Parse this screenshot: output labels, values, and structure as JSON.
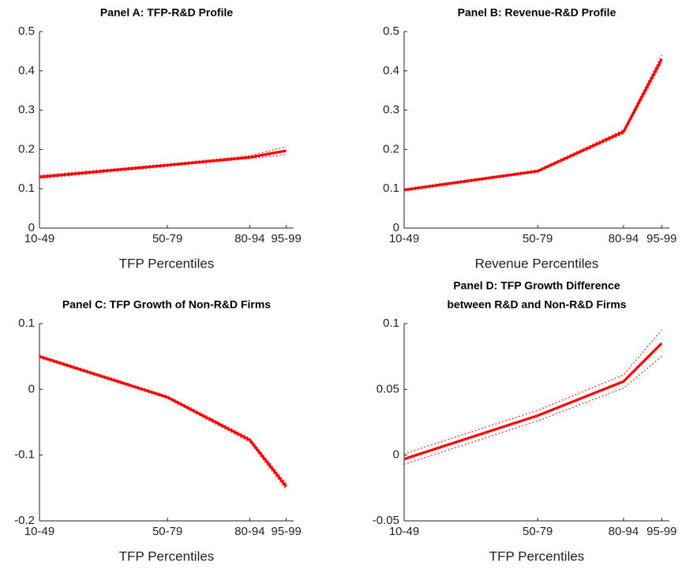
{
  "chart_data": [
    {
      "type": "line",
      "title": [
        "Panel A: TFP-R&D Profile"
      ],
      "xlabel": "TFP Percentiles",
      "x": [
        29.5,
        64.5,
        87,
        97
      ],
      "xlim": [
        29.5,
        99
      ],
      "xticks": [
        {
          "value": 29.5,
          "label": "10-49"
        },
        {
          "value": 64.5,
          "label": "50-79"
        },
        {
          "value": 87,
          "label": "80-94"
        },
        {
          "value": 97,
          "label": "95-99"
        }
      ],
      "values": [
        0.13,
        0.16,
        0.18,
        0.197
      ],
      "upper": [
        0.134,
        0.163,
        0.184,
        0.207
      ],
      "lower": [
        0.126,
        0.157,
        0.177,
        0.187
      ],
      "ylim": [
        0,
        0.5
      ],
      "yticks": [
        0,
        0.1,
        0.2,
        0.3,
        0.4,
        0.5
      ],
      "color": "#ff0000"
    },
    {
      "type": "line",
      "title": [
        "Panel B: Revenue-R&D Profile"
      ],
      "xlabel": "Revenue Percentiles",
      "x": [
        29.5,
        64.5,
        87,
        97
      ],
      "xlim": [
        29.5,
        99
      ],
      "xticks": [
        {
          "value": 29.5,
          "label": "10-49"
        },
        {
          "value": 64.5,
          "label": "50-79"
        },
        {
          "value": 87,
          "label": "80-94"
        },
        {
          "value": 97,
          "label": "95-99"
        }
      ],
      "values": [
        0.097,
        0.145,
        0.245,
        0.43
      ],
      "upper": [
        0.1,
        0.148,
        0.25,
        0.44
      ],
      "lower": [
        0.094,
        0.142,
        0.24,
        0.42
      ],
      "ylim": [
        0,
        0.5
      ],
      "yticks": [
        0,
        0.1,
        0.2,
        0.3,
        0.4,
        0.5
      ],
      "color": "#ff0000"
    },
    {
      "type": "line",
      "title": [
        "Panel C: TFP Growth of Non-R&D Firms"
      ],
      "xlabel": "TFP Percentiles",
      "x": [
        29.5,
        64.5,
        87,
        97
      ],
      "xlim": [
        29.5,
        99
      ],
      "xticks": [
        {
          "value": 29.5,
          "label": "10-49"
        },
        {
          "value": 64.5,
          "label": "50-79"
        },
        {
          "value": 87,
          "label": "80-94"
        },
        {
          "value": 97,
          "label": "95-99"
        }
      ],
      "values": [
        0.05,
        -0.012,
        -0.077,
        -0.148
      ],
      "upper": [
        0.052,
        -0.01,
        -0.074,
        -0.143
      ],
      "lower": [
        0.048,
        -0.014,
        -0.08,
        -0.153
      ],
      "ylim": [
        -0.2,
        0.1
      ],
      "yticks": [
        -0.2,
        -0.1,
        0,
        0.1
      ],
      "color": "#ff0000"
    },
    {
      "type": "line",
      "title": [
        "Panel D: TFP Growth Difference",
        "between R&D and Non-R&D Firms"
      ],
      "xlabel": "TFP Percentiles",
      "x": [
        29.5,
        64.5,
        87,
        97
      ],
      "xlim": [
        29.5,
        99
      ],
      "xticks": [
        {
          "value": 29.5,
          "label": "10-49"
        },
        {
          "value": 64.5,
          "label": "50-79"
        },
        {
          "value": 87,
          "label": "80-94"
        },
        {
          "value": 97,
          "label": "95-99"
        }
      ],
      "values": [
        -0.003,
        0.03,
        0.056,
        0.085
      ],
      "upper": [
        0.001,
        0.034,
        0.061,
        0.095
      ],
      "lower": [
        -0.007,
        0.026,
        0.051,
        0.075
      ],
      "ylim": [
        -0.05,
        0.1
      ],
      "yticks": [
        -0.05,
        0,
        0.05,
        0.1
      ],
      "color": "#ff0000"
    }
  ]
}
